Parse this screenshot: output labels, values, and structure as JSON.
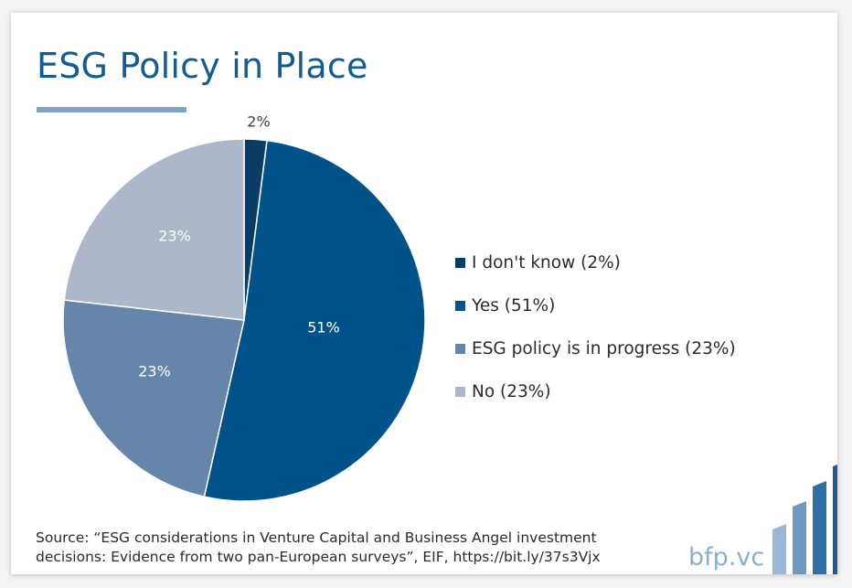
{
  "title": "ESG Policy in Place",
  "chart_data": {
    "type": "pie",
    "slices": [
      {
        "label": "I don't know",
        "value": 2,
        "data_label": "2%",
        "legend": "I don't know (2%)",
        "color": "#0b3c63"
      },
      {
        "label": "Yes",
        "value": 51,
        "data_label": "51%",
        "legend": "Yes (51%)",
        "color": "#00538a"
      },
      {
        "label": "ESG policy is in progress",
        "value": 23,
        "data_label": "23%",
        "legend": "ESG policy is in progress (23%)",
        "color": "#6585ab"
      },
      {
        "label": "No",
        "value": 23,
        "data_label": "23%",
        "legend": "No (23%)",
        "color": "#acb7ca"
      }
    ],
    "legend_position": "right"
  },
  "source": {
    "line1": "Source: “ESG considerations in Venture Capital and Business Angel investment",
    "line2": "decisions: Evidence from two pan-European surveys”, EIF, https://bit.ly/37s3Vjx"
  },
  "brand": "bfp.vc",
  "colors": {
    "title": "#135c8f",
    "accent_line": "#7fa3c8",
    "brand_text": "#8aaed0",
    "bars": [
      "#9ab8d6",
      "#6f98c2",
      "#2f6fa8",
      "#1d5b93"
    ]
  }
}
